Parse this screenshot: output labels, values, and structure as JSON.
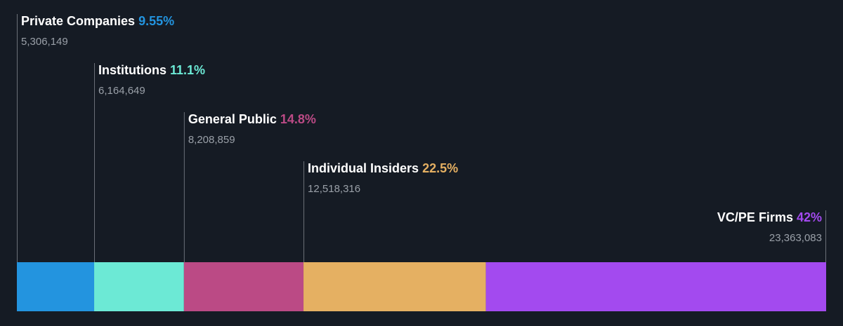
{
  "chart_data": {
    "type": "bar",
    "subtype": "stacked-horizontal-100pct",
    "categories": [
      "Private Companies",
      "Institutions",
      "General Public",
      "Individual Insiders",
      "VC/PE Firms"
    ],
    "series": [
      {
        "category": "Private Companies",
        "percent_label": "9.55%",
        "percent": 9.55,
        "value_label": "5,306,149",
        "value": 5306149,
        "color": "#2394df"
      },
      {
        "category": "Institutions",
        "percent_label": "11.1%",
        "percent": 11.1,
        "value_label": "6,164,649",
        "value": 6164649,
        "color": "#6ce9d5"
      },
      {
        "category": "General Public",
        "percent_label": "14.8%",
        "percent": 14.8,
        "value_label": "8,208,859",
        "value": 8208859,
        "color": "#bb4a85"
      },
      {
        "category": "Individual Insiders",
        "percent_label": "22.5%",
        "percent": 22.5,
        "value_label": "12,518,316",
        "value": 12518316,
        "color": "#e5b062"
      },
      {
        "category": "VC/PE Firms",
        "percent_label": "42%",
        "percent": 42,
        "value_label": "23,363,083",
        "value": 23363083,
        "color": "#a34aef"
      }
    ],
    "legend": "none",
    "grid": false
  },
  "colors": {
    "background": "#151b24",
    "label_text": "#ffffff",
    "value_text": "#9aa0a8",
    "leader_line": "#6b7078"
  }
}
